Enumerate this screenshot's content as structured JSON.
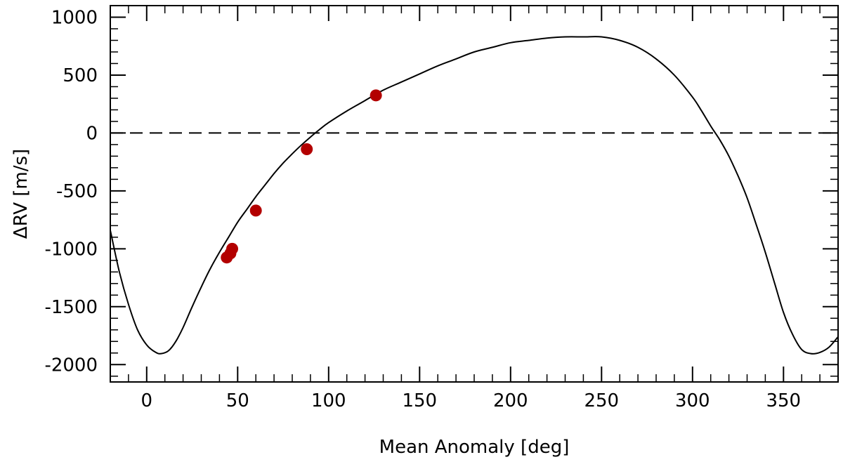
{
  "chart_data": {
    "type": "line",
    "xlabel": "Mean Anomaly [deg]",
    "ylabel": "ΔRV [m/s]",
    "xlim": [
      -20,
      380
    ],
    "ylim": [
      -2150,
      1100
    ],
    "x_ticks": [
      0,
      50,
      100,
      150,
      200,
      250,
      300,
      350
    ],
    "x_tick_labels": [
      "0",
      "50",
      "100",
      "150",
      "200",
      "250",
      "300",
      "350"
    ],
    "y_ticks": [
      -2000,
      -1500,
      -1000,
      -500,
      0,
      500,
      1000
    ],
    "y_tick_labels": [
      "-2000",
      "-1500",
      "-1000",
      "-500",
      "0",
      "500",
      "1000"
    ],
    "grid": false,
    "reference_line": {
      "y": 0,
      "style": "dashed"
    },
    "series": [
      {
        "kind": "line",
        "color": "#000000",
        "x": [
          -20,
          -15,
          -10,
          -5,
          0,
          5,
          8,
          12,
          16,
          20,
          25,
          30,
          35,
          40,
          45,
          50,
          55,
          60,
          65,
          70,
          75,
          80,
          85,
          90,
          95,
          100,
          110,
          120,
          130,
          140,
          150,
          160,
          170,
          180,
          190,
          200,
          210,
          220,
          230,
          240,
          250,
          260,
          270,
          280,
          290,
          300,
          305,
          310,
          315,
          320,
          325,
          330,
          335,
          340,
          345,
          350,
          355,
          360,
          365,
          370,
          375,
          380
        ],
        "y": [
          -840,
          -1200,
          -1480,
          -1700,
          -1830,
          -1895,
          -1905,
          -1880,
          -1800,
          -1680,
          -1500,
          -1330,
          -1170,
          -1030,
          -900,
          -770,
          -660,
          -550,
          -450,
          -350,
          -260,
          -180,
          -105,
          -35,
          30,
          90,
          190,
          280,
          370,
          440,
          510,
          580,
          640,
          700,
          740,
          780,
          800,
          820,
          830,
          830,
          830,
          800,
          740,
          640,
          500,
          310,
          190,
          60,
          -60,
          -200,
          -370,
          -560,
          -790,
          -1030,
          -1290,
          -1550,
          -1740,
          -1870,
          -1905,
          -1895,
          -1850,
          -1760
        ]
      },
      {
        "kind": "scatter",
        "color": "#b30000",
        "x": [
          44,
          46,
          47,
          60,
          88,
          126
        ],
        "y": [
          -1075,
          -1040,
          -1000,
          -670,
          -140,
          325
        ]
      }
    ]
  }
}
